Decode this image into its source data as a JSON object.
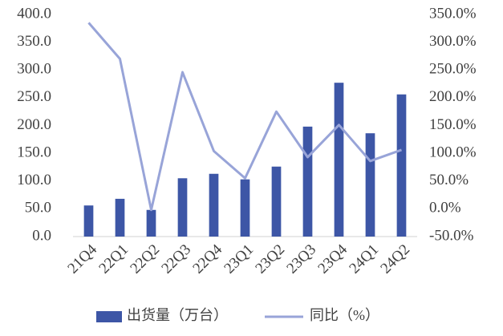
{
  "chart_data": {
    "type": "bar-line",
    "categories": [
      "21Q4",
      "22Q1",
      "22Q2",
      "22Q3",
      "22Q4",
      "23Q1",
      "23Q2",
      "23Q3",
      "23Q4",
      "24Q1",
      "24Q2"
    ],
    "series": [
      {
        "name": "出货量（万台）",
        "color": "#3d56a6",
        "type": "bar",
        "axis": "y",
        "values": [
          56,
          68,
          48,
          105,
          113,
          103,
          126,
          198,
          277,
          186,
          256
        ]
      },
      {
        "name": "同比（%）",
        "color": "#98a4d8",
        "type": "line",
        "axis": "y2",
        "values": [
          335,
          270,
          -2,
          246,
          104,
          55,
          175,
          93,
          151,
          86,
          106
        ]
      }
    ],
    "ylim": [
      0,
      400
    ],
    "yticks": [
      {
        "value": 0,
        "label": "0.0"
      },
      {
        "value": 50,
        "label": "50.0"
      },
      {
        "value": 100,
        "label": "100.0"
      },
      {
        "value": 150,
        "label": "150.0"
      },
      {
        "value": 200,
        "label": "200.0"
      },
      {
        "value": 250,
        "label": "250.0"
      },
      {
        "value": 300,
        "label": "300.0"
      },
      {
        "value": 350,
        "label": "350.0"
      },
      {
        "value": 400,
        "label": "400.0"
      }
    ],
    "y2lim": [
      -50,
      350
    ],
    "y2ticks": [
      {
        "value": -50,
        "label": "-50.0%"
      },
      {
        "value": 0,
        "label": "0.0%"
      },
      {
        "value": 50,
        "label": "50.0%"
      },
      {
        "value": 100,
        "label": "100.0%"
      },
      {
        "value": 150,
        "label": "150.0%"
      },
      {
        "value": 200,
        "label": "200.0%"
      },
      {
        "value": 250,
        "label": "250.0%"
      },
      {
        "value": 300,
        "label": "300.0%"
      },
      {
        "value": 350,
        "label": "350.0%"
      }
    ],
    "grid": false,
    "legend": "bottom"
  }
}
